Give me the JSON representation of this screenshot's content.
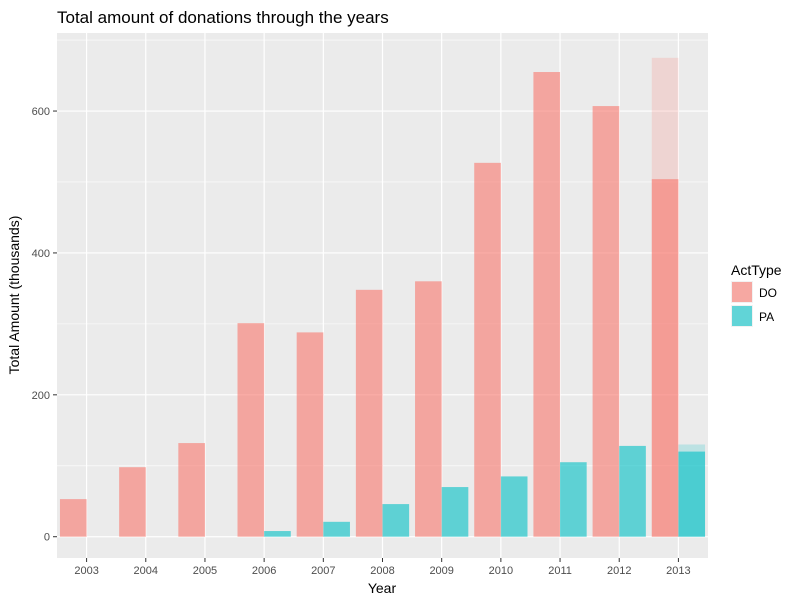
{
  "chart_data": {
    "type": "bar",
    "title": "Total amount of donations through the years",
    "xlabel": "Year",
    "ylabel": "Total Amount (thousands)",
    "categories": [
      "2003",
      "2004",
      "2005",
      "2006",
      "2007",
      "2008",
      "2009",
      "2010",
      "2011",
      "2012",
      "2013"
    ],
    "series": [
      {
        "name": "DO",
        "color": "#f8766d",
        "values": [
          53,
          98,
          132,
          301,
          288,
          348,
          360,
          527,
          655,
          607,
          504
        ],
        "projected": [
          null,
          null,
          null,
          null,
          null,
          null,
          null,
          null,
          null,
          null,
          675
        ]
      },
      {
        "name": "PA",
        "color": "#00bfc4",
        "values": [
          0,
          0,
          0,
          8,
          21,
          46,
          70,
          85,
          105,
          128,
          120
        ],
        "projected": [
          null,
          null,
          null,
          null,
          null,
          null,
          null,
          null,
          null,
          null,
          130
        ]
      }
    ],
    "ylim": [
      -30,
      710
    ],
    "yticks": [
      0,
      200,
      400,
      600
    ],
    "ytick_labels": [
      "0",
      "200",
      "400",
      "600"
    ],
    "legend": {
      "title": "ActType",
      "position": "right"
    },
    "grid": true,
    "background": "#ebebeb",
    "gridline_color": "#ffffff"
  }
}
